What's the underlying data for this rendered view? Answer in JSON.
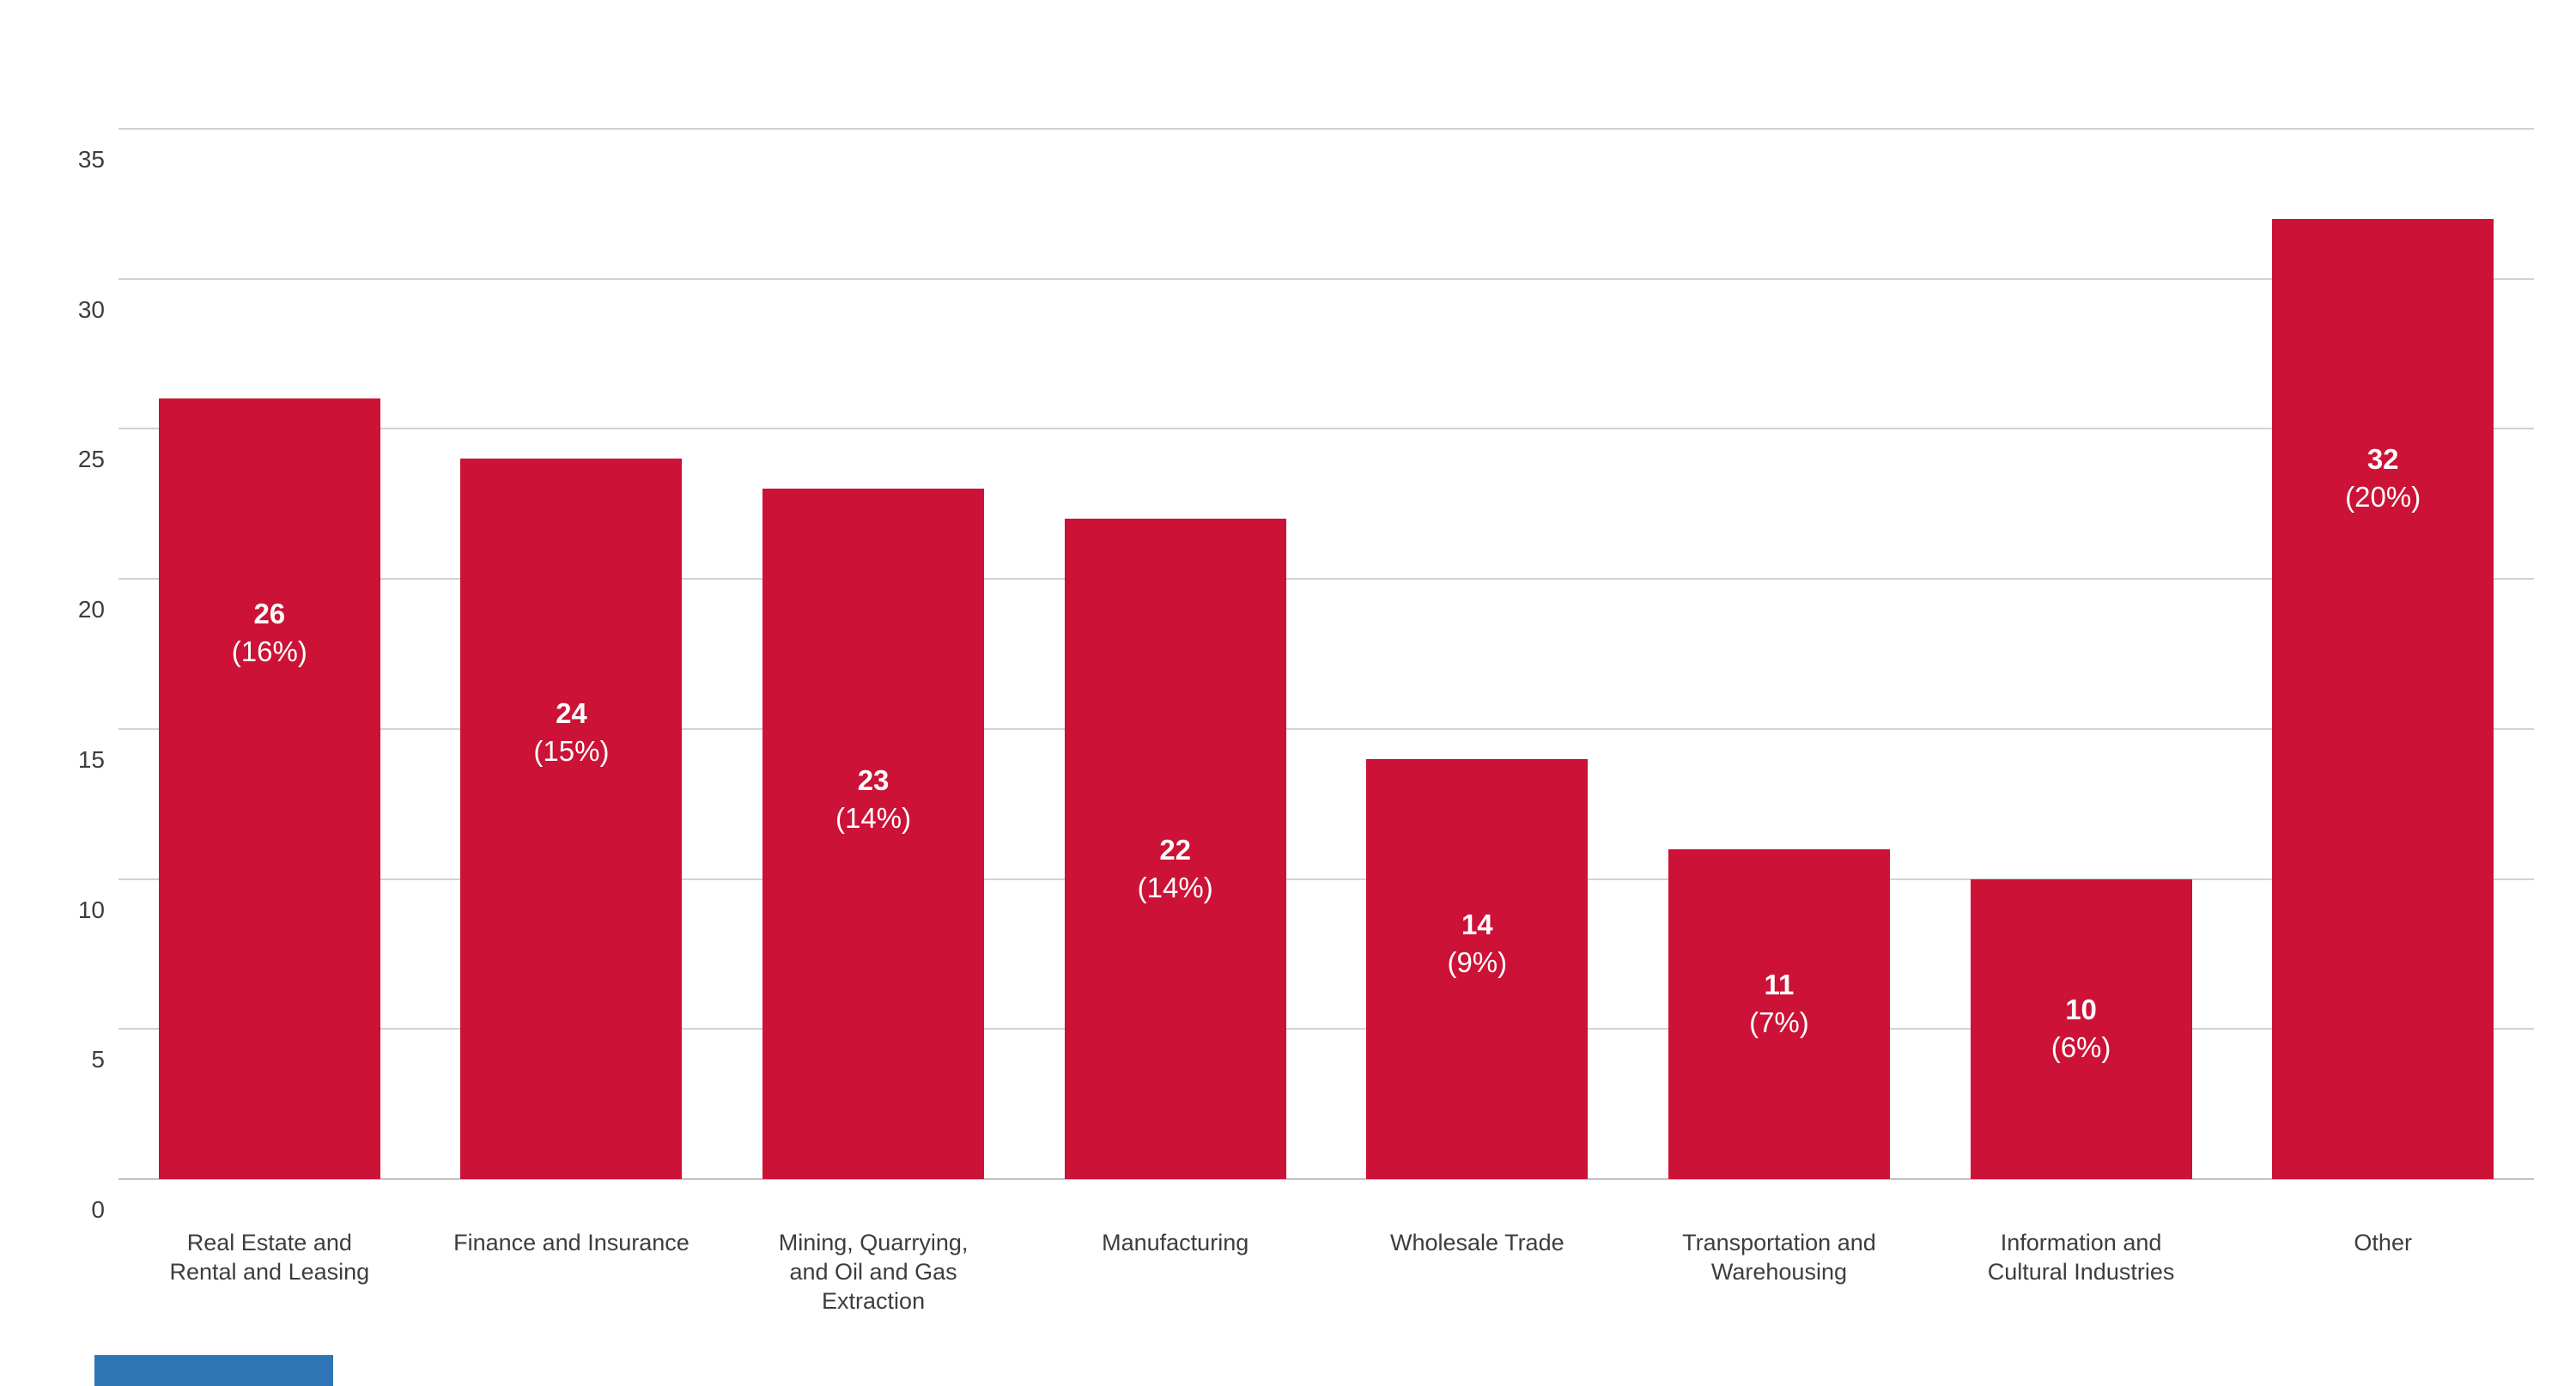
{
  "chart_data": {
    "type": "bar",
    "title": "",
    "categories": [
      "Real Estate and\nRental and Leasing",
      "Finance and Insurance",
      "Mining, Quarrying,\nand Oil and Gas\nExtraction",
      "Manufacturing",
      "Wholesale Trade",
      "Transportation and\nWarehousing",
      "Information and\nCultural Industries",
      "Other"
    ],
    "values": [
      26,
      24,
      23,
      22,
      14,
      11,
      10,
      32
    ],
    "value_labels": [
      "26",
      "24",
      "23",
      "22",
      "14",
      "11",
      "10",
      "32"
    ],
    "percent_labels": [
      "(16%)",
      "(15%)",
      "(14%)",
      "(14%)",
      "(9%)",
      "(7%)",
      "(6%)",
      "(20%)"
    ],
    "ylim": [
      0,
      35
    ],
    "ytick_labels": [
      "0",
      "5",
      "10",
      "15",
      "20",
      "25",
      "30",
      "35"
    ],
    "grid": true,
    "legend": "none",
    "bar_color": "#CC1236",
    "bar_label_color": "#FFFFFF",
    "axis_text_color": "#3D3D3D",
    "gridline_color": "#D2D2D2",
    "accent_bar_color": "#2E75B6"
  }
}
